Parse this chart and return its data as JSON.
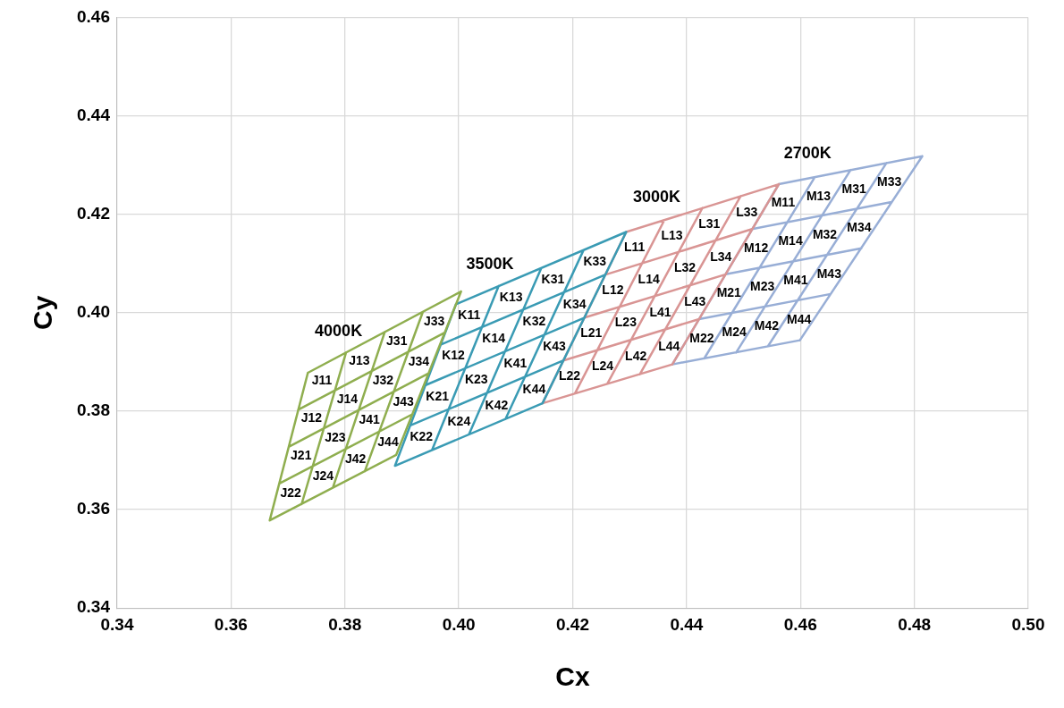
{
  "chart_data": {
    "type": "line",
    "xlabel": "Cx",
    "ylabel": "Cy",
    "xlim": [
      0.34,
      0.5
    ],
    "ylim": [
      0.34,
      0.46
    ],
    "xticks": [
      0.34,
      0.36,
      0.38,
      {
        "value": 0.4,
        "label": "0.40"
      },
      0.42,
      0.44,
      0.46,
      0.48,
      {
        "value": 0.5,
        "label": "0.50"
      }
    ],
    "yticks": [
      0.34,
      0.36,
      0.38,
      {
        "value": 0.4,
        "label": "0.40"
      },
      0.42,
      0.44,
      {
        "value": 0.46,
        "label": "0.46"
      }
    ],
    "grid": true,
    "legend": false,
    "marker": "none",
    "line_style": "solid",
    "series": [
      {
        "name": "4000K",
        "color": "#8fae4f",
        "x": [
          0.3668,
          0.389,
          null,
          0.3685,
          0.3919,
          null,
          0.3702,
          0.3947,
          null,
          0.3718,
          0.3976,
          null,
          0.3735,
          0.4004,
          null,
          0.3668,
          0.3735,
          null,
          0.3724,
          0.3802,
          null,
          0.3779,
          0.387,
          null,
          0.3835,
          0.3937,
          null,
          0.389,
          0.4004
        ],
        "values": [
          0.3578,
          0.3711,
          null,
          0.3653,
          0.3794,
          null,
          0.3728,
          0.3877,
          null,
          0.3803,
          0.396,
          null,
          0.3878,
          0.4043,
          null,
          0.3578,
          0.3878,
          null,
          0.3611,
          0.3919,
          null,
          0.3645,
          0.3961,
          null,
          0.3678,
          0.4002,
          null,
          0.3711,
          0.4043
        ]
      },
      {
        "name": "3500K",
        "color": "#3a9bb4",
        "x": [
          0.3888,
          0.4147,
          null,
          0.3915,
          0.4184,
          null,
          0.3942,
          0.4221,
          null,
          0.3968,
          0.4257,
          null,
          0.3995,
          0.4294,
          null,
          0.3888,
          0.3995,
          null,
          0.3953,
          0.407,
          null,
          0.4018,
          0.4145,
          null,
          0.4082,
          0.4219,
          null,
          0.4147,
          0.4294
        ],
        "values": [
          0.3689,
          0.3816,
          null,
          0.3771,
          0.3903,
          null,
          0.3853,
          0.399,
          null,
          0.3935,
          0.4077,
          null,
          0.4017,
          0.4164,
          null,
          0.3689,
          0.4017,
          null,
          0.3721,
          0.4054,
          null,
          0.3753,
          0.4091,
          null,
          0.3784,
          0.4127,
          null,
          0.3816,
          0.4164
        ]
      },
      {
        "name": "3000K",
        "color": "#d99594",
        "x": [
          0.4147,
          0.4375,
          null,
          0.4184,
          0.4422,
          null,
          0.4221,
          0.4469,
          null,
          0.4257,
          0.4515,
          null,
          0.4294,
          0.4562,
          null,
          0.4147,
          0.4294,
          null,
          0.4204,
          0.4361,
          null,
          0.4261,
          0.4428,
          null,
          0.4318,
          0.4495,
          null,
          0.4375,
          0.4562
        ],
        "values": [
          0.3816,
          0.3895,
          null,
          0.3903,
          0.3987,
          null,
          0.399,
          0.4078,
          null,
          0.4077,
          0.417,
          null,
          0.4164,
          0.4261,
          null,
          0.3816,
          0.4164,
          null,
          0.3836,
          0.4188,
          null,
          0.3856,
          0.4213,
          null,
          0.3875,
          0.4237,
          null,
          0.3895,
          0.4261
        ]
      },
      {
        "name": "2700K",
        "color": "#98aed6",
        "x": [
          0.4375,
          0.4599,
          null,
          0.4422,
          0.4653,
          null,
          0.4469,
          0.4707,
          null,
          0.4515,
          0.476,
          null,
          0.4562,
          0.4814,
          null,
          0.4375,
          0.4562,
          null,
          0.4431,
          0.4625,
          null,
          0.4487,
          0.4688,
          null,
          0.4543,
          0.4751,
          null,
          0.4599,
          0.4814
        ],
        "values": [
          0.3895,
          0.3944,
          null,
          0.3987,
          0.4038,
          null,
          0.4078,
          0.4131,
          null,
          0.417,
          0.4225,
          null,
          0.4261,
          0.4318,
          null,
          0.3895,
          0.4261,
          null,
          0.3907,
          0.4275,
          null,
          0.3919,
          0.429,
          null,
          0.3932,
          0.4304,
          null,
          0.3944,
          0.4318
        ]
      }
    ],
    "annotations": [
      "J11",
      "J13",
      "J31",
      "J33",
      "J12",
      "J14",
      "J32",
      "J34",
      "J21",
      "J23",
      "J41",
      "J43",
      "J22",
      "J24",
      "J42",
      "J44",
      "K11",
      "K13",
      "K31",
      "K33",
      "K12",
      "K14",
      "K32",
      "K34",
      "K21",
      "K23",
      "K41",
      "K43",
      "K22",
      "K24",
      "K42",
      "K44",
      "L11",
      "L13",
      "L31",
      "L33",
      "L12",
      "L14",
      "L32",
      "L34",
      "L21",
      "L23",
      "L41",
      "L43",
      "L22",
      "L24",
      "L42",
      "L44",
      "M11",
      "M13",
      "M31",
      "M33",
      "M12",
      "M14",
      "M32",
      "M34",
      "M21",
      "M23",
      "M41",
      "M43",
      "M22",
      "M24",
      "M42",
      "M44"
    ]
  }
}
